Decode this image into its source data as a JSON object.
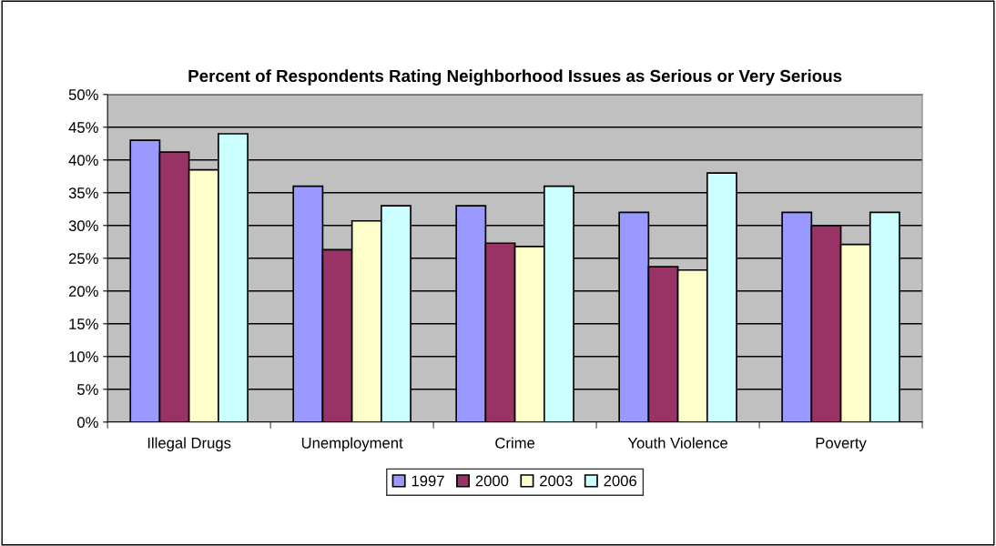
{
  "chart_data": {
    "type": "bar",
    "title": "Percent of Respondents Rating Neighborhood Issues as Serious or Very Serious",
    "categories": [
      "Illegal Drugs",
      "Unemployment",
      "Crime",
      "Youth Violence",
      "Poverty"
    ],
    "series": [
      {
        "name": "1997",
        "color": "#9999ff",
        "values": [
          43,
          36,
          33,
          32,
          32
        ]
      },
      {
        "name": "2000",
        "color": "#993366",
        "values": [
          41.2,
          26.3,
          27.3,
          23.7,
          30
        ]
      },
      {
        "name": "2003",
        "color": "#ffffcc",
        "values": [
          38.5,
          30.7,
          26.8,
          23.2,
          27.1
        ]
      },
      {
        "name": "2006",
        "color": "#ccffff",
        "values": [
          44,
          33,
          36,
          38,
          32
        ]
      }
    ],
    "ylim": [
      0,
      50
    ],
    "yticks": [
      {
        "value": 0,
        "label": "0%"
      },
      {
        "value": 5,
        "label": "5%"
      },
      {
        "value": 10,
        "label": "10%"
      },
      {
        "value": 15,
        "label": "15%"
      },
      {
        "value": 20,
        "label": "20%"
      },
      {
        "value": 25,
        "label": "25%"
      },
      {
        "value": 30,
        "label": "30%"
      },
      {
        "value": 35,
        "label": "35%"
      },
      {
        "value": 40,
        "label": "40%"
      },
      {
        "value": 45,
        "label": "45%"
      },
      {
        "value": 50,
        "label": "50%"
      }
    ],
    "grid": "y",
    "legend": "bottom"
  }
}
